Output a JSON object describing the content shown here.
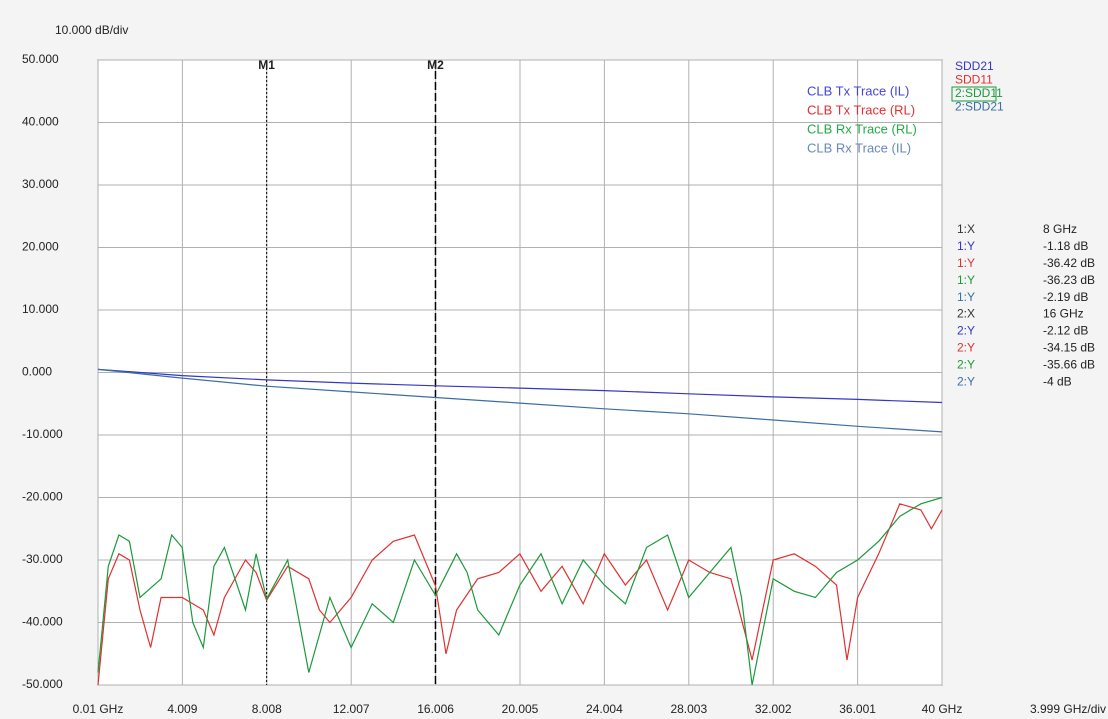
{
  "chart_data": {
    "type": "line",
    "y_scale_label": "10.000 dB/div",
    "x_scale_label": "3.999 GHz/div",
    "xlim": [
      0.01,
      40
    ],
    "ylim": [
      -50,
      50
    ],
    "xticks": [
      {
        "value": 0.01,
        "label": "0.01 GHz"
      },
      4.009,
      8.008,
      12.007,
      16.006,
      20.005,
      24.004,
      28.003,
      32.002,
      36.001,
      {
        "value": 40,
        "label": "40 GHz"
      }
    ],
    "yticks": [
      {
        "value": 50,
        "label": "50.000"
      },
      {
        "value": 40,
        "label": "40.000"
      },
      {
        "value": 30,
        "label": "30.000"
      },
      {
        "value": 20,
        "label": "20.000"
      },
      {
        "value": 10,
        "label": "10.000"
      },
      {
        "value": 0,
        "label": "0.000"
      },
      {
        "value": -10,
        "label": "-10.000"
      },
      {
        "value": -20,
        "label": "-20.000"
      },
      {
        "value": -30,
        "label": "-30.000"
      },
      {
        "value": -40,
        "label": "-40.000"
      },
      {
        "value": -50,
        "label": "-50.000"
      }
    ],
    "grid": true,
    "series": [
      {
        "name": "SDD21",
        "color": "#3535c8",
        "x": [
          0.01,
          4,
          8,
          12,
          16,
          20,
          24,
          28,
          32,
          36,
          40
        ],
        "values": [
          0.5,
          -0.5,
          -1.18,
          -1.7,
          -2.12,
          -2.5,
          -2.9,
          -3.4,
          -3.9,
          -4.3,
          -4.8
        ]
      },
      {
        "name": "SDD11",
        "color": "#e03030",
        "x": [
          0.01,
          0.5,
          1,
          1.5,
          2,
          2.5,
          3,
          4,
          5,
          5.5,
          6,
          7,
          7.5,
          8,
          9,
          10,
          10.5,
          11,
          12,
          13,
          14,
          15,
          16,
          16.5,
          17,
          18,
          19,
          20,
          21,
          22,
          23,
          24,
          25,
          26,
          27,
          28,
          29,
          30,
          31,
          32,
          33,
          34,
          35,
          35.5,
          36,
          37,
          38,
          39,
          39.5,
          40
        ],
        "values": [
          -50,
          -33,
          -29,
          -30,
          -38,
          -44,
          -36,
          -36,
          -38,
          -42,
          -36,
          -30,
          -32,
          -36.42,
          -31,
          -33,
          -38,
          -40,
          -36,
          -30,
          -27,
          -26,
          -34.15,
          -45,
          -38,
          -33,
          -32,
          -29,
          -35,
          -31,
          -37,
          -29,
          -34,
          -30,
          -38,
          -30,
          -32,
          -33,
          -46,
          -30,
          -29,
          -31,
          -34,
          -46,
          -36,
          -29,
          -21,
          -22,
          -25,
          -22
        ]
      },
      {
        "name": "2:SDD11",
        "color": "#1a9a3a",
        "x": [
          0.01,
          0.5,
          1,
          1.5,
          2,
          3,
          3.5,
          4,
          4.5,
          5,
          5.5,
          6,
          7,
          7.5,
          8,
          9,
          10,
          11,
          12,
          13,
          14,
          15,
          16,
          17,
          17.5,
          18,
          19,
          20,
          21,
          22,
          23,
          24,
          25,
          26,
          27,
          28,
          29,
          30,
          30.5,
          31,
          32,
          33,
          34,
          35,
          36,
          37,
          38,
          39,
          40
        ],
        "values": [
          -48,
          -31,
          -26,
          -27,
          -36,
          -33,
          -26,
          -28,
          -40,
          -44,
          -31,
          -28,
          -38,
          -29,
          -36.23,
          -30,
          -48,
          -36,
          -44,
          -37,
          -40,
          -30,
          -35.66,
          -29,
          -32,
          -38,
          -42,
          -34,
          -29,
          -37,
          -30,
          -34,
          -37,
          -28,
          -26,
          -36,
          -32,
          -28,
          -36,
          -50,
          -33,
          -35,
          -36,
          -32,
          -30,
          -27,
          -23,
          -21,
          -20
        ]
      },
      {
        "name": "2:SDD21",
        "color": "#3a6ea5",
        "x": [
          0.01,
          4,
          8,
          12,
          16,
          20,
          24,
          28,
          32,
          36,
          40
        ],
        "values": [
          0.5,
          -0.9,
          -2.19,
          -3.1,
          -4,
          -4.9,
          -5.8,
          -6.6,
          -7.6,
          -8.6,
          -9.5
        ]
      }
    ],
    "trace_labels": [
      {
        "text": "CLB Tx Trace (IL)",
        "color": "#4444dd"
      },
      {
        "text": "CLB Tx Trace (RL)",
        "color": "#e03030"
      },
      {
        "text": "CLB Rx Trace (RL)",
        "color": "#22aa44"
      },
      {
        "text": "CLB Rx Trace (IL)",
        "color": "#6688bb"
      }
    ],
    "markers": [
      {
        "label": "M1",
        "x": 8
      },
      {
        "label": "M2",
        "x": 16
      }
    ],
    "marker_table": [
      {
        "label": "1:X",
        "value": "8 GHz",
        "color": "#333333"
      },
      {
        "label": "1:Y",
        "value": "-1.18 dB",
        "color": "#3535c8"
      },
      {
        "label": "1:Y",
        "value": "-36.42 dB",
        "color": "#e03030"
      },
      {
        "label": "1:Y",
        "value": "-36.23 dB",
        "color": "#1a9a3a"
      },
      {
        "label": "1:Y",
        "value": "-2.19 dB",
        "color": "#3a6ea5"
      },
      {
        "label": "2:X",
        "value": "16 GHz",
        "color": "#333333"
      },
      {
        "label": "2:Y",
        "value": "-2.12 dB",
        "color": "#3535c8"
      },
      {
        "label": "2:Y",
        "value": "-34.15 dB",
        "color": "#e03030"
      },
      {
        "label": "2:Y",
        "value": "-35.66 dB",
        "color": "#1a9a3a"
      },
      {
        "label": "2:Y",
        "value": "-4 dB",
        "color": "#3a6ea5"
      }
    ]
  }
}
